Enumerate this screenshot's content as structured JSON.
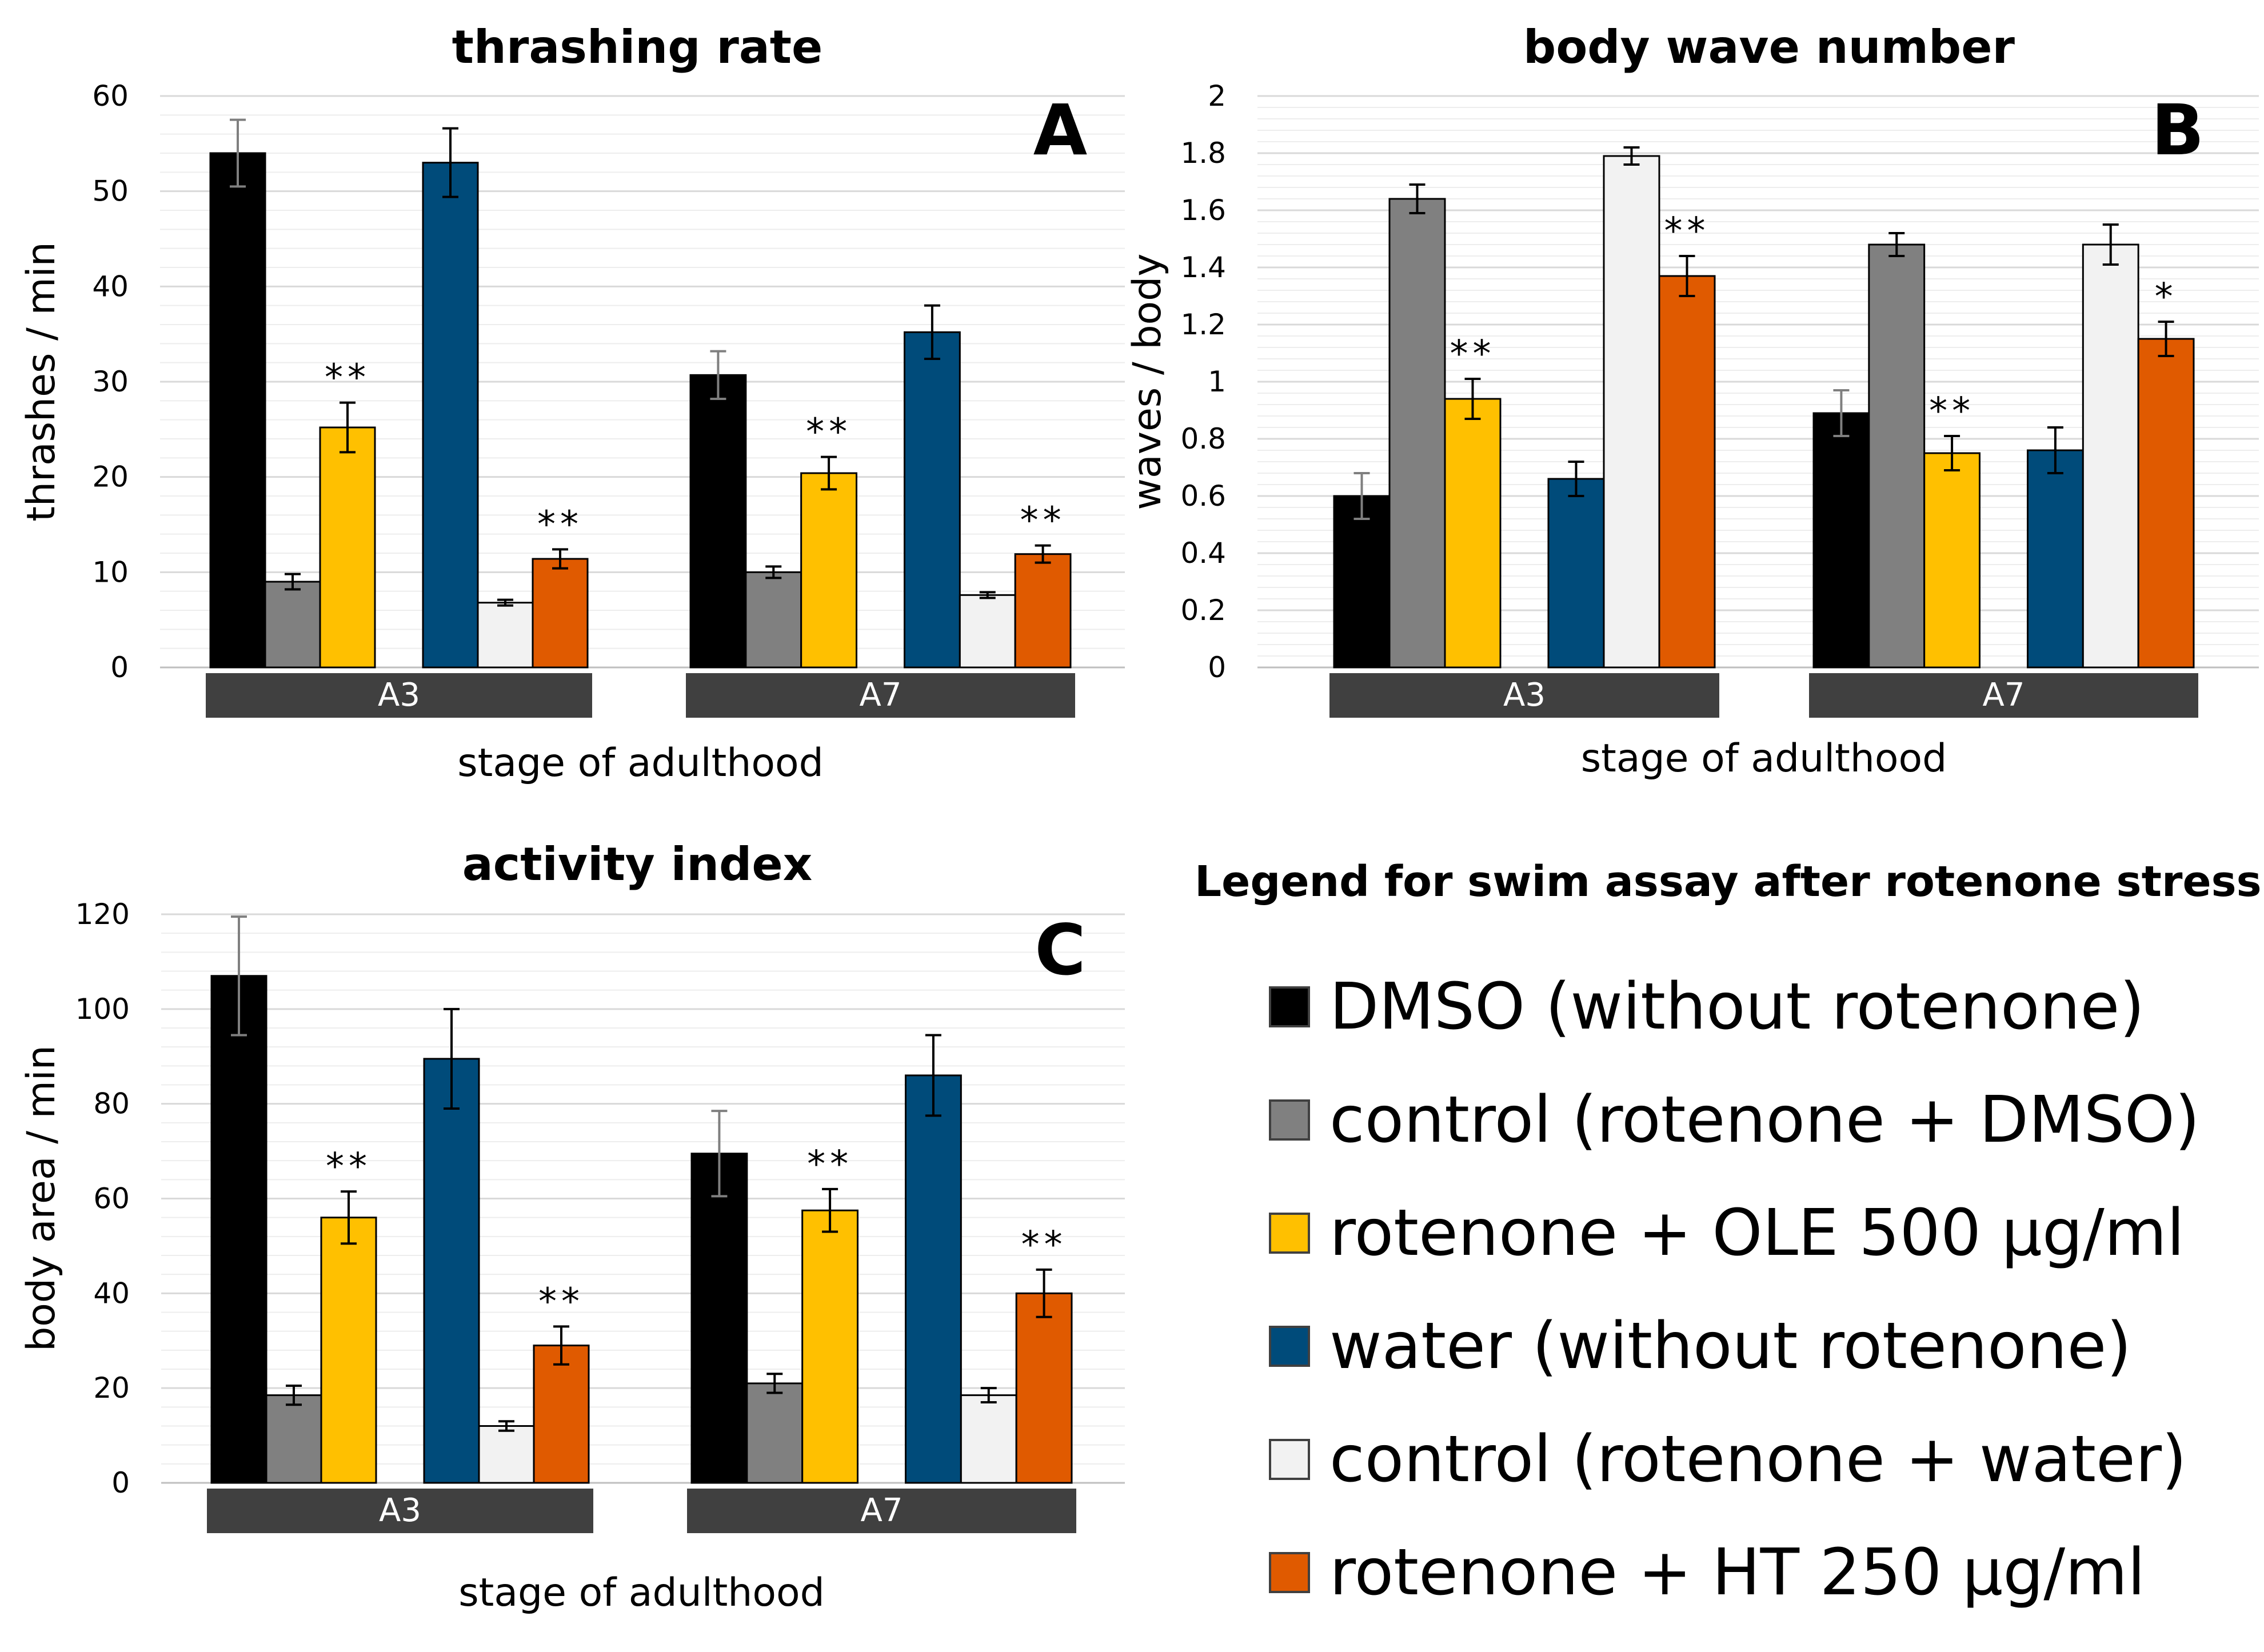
{
  "chart_data": [
    {
      "type": "bar",
      "panel": "A",
      "title": "thrashing rate",
      "xlabel": "stage of adulthood",
      "ylabel": "thrashes / min",
      "ylim": [
        0,
        60
      ],
      "yticks": [
        "0",
        "10",
        "20",
        "30",
        "40",
        "50",
        "60"
      ],
      "categories": [
        "A3",
        "A7"
      ],
      "series": [
        {
          "name": "DMSO (without rotenone)",
          "values": [
            54,
            30.7
          ],
          "errors": [
            3.5,
            2.5
          ],
          "marks": [
            "",
            ""
          ]
        },
        {
          "name": "control (rotenone + DMSO)",
          "values": [
            9,
            10
          ],
          "errors": [
            0.8,
            0.6
          ],
          "marks": [
            "",
            ""
          ]
        },
        {
          "name": "rotenone + OLE 500 µg/ml",
          "values": [
            25.2,
            20.4
          ],
          "errors": [
            2.6,
            1.7
          ],
          "marks": [
            "**",
            "**"
          ]
        },
        {
          "name": "water (without rotenone)",
          "values": [
            53,
            35.2
          ],
          "errors": [
            3.6,
            2.8
          ],
          "marks": [
            "",
            ""
          ]
        },
        {
          "name": "control (rotenone + water)",
          "values": [
            6.8,
            7.6
          ],
          "errors": [
            0.3,
            0.3
          ],
          "marks": [
            "",
            ""
          ]
        },
        {
          "name": "rotenone + HT 250 µg/ml",
          "values": [
            11.4,
            11.9
          ],
          "errors": [
            1,
            0.9
          ],
          "marks": [
            "**",
            "**"
          ]
        }
      ]
    },
    {
      "type": "bar",
      "panel": "B",
      "title": "body wave number",
      "xlabel": "stage of adulthood",
      "ylabel": "waves / body",
      "ylim": [
        0,
        2
      ],
      "yticks": [
        "0",
        "0.2",
        "0.4",
        "0.6",
        "0.8",
        "1",
        "1.2",
        "1.4",
        "1.6",
        "1.8",
        "2"
      ],
      "categories": [
        "A3",
        "A7"
      ],
      "series": [
        {
          "name": "DMSO (without rotenone)",
          "values": [
            0.6,
            0.89
          ],
          "errors": [
            0.08,
            0.08
          ],
          "marks": [
            "",
            ""
          ]
        },
        {
          "name": "control (rotenone + DMSO)",
          "values": [
            1.64,
            1.48
          ],
          "errors": [
            0.05,
            0.04
          ],
          "marks": [
            "",
            ""
          ]
        },
        {
          "name": "rotenone + OLE 500 µg/ml",
          "values": [
            0.94,
            0.75
          ],
          "errors": [
            0.07,
            0.06
          ],
          "marks": [
            "**",
            "**"
          ]
        },
        {
          "name": "water (without rotenone)",
          "values": [
            0.66,
            0.76
          ],
          "errors": [
            0.06,
            0.08
          ],
          "marks": [
            "",
            ""
          ]
        },
        {
          "name": "control (rotenone + water)",
          "values": [
            1.79,
            1.48
          ],
          "errors": [
            0.03,
            0.07
          ],
          "marks": [
            "",
            ""
          ]
        },
        {
          "name": "rotenone + HT 250 µg/ml",
          "values": [
            1.37,
            1.15
          ],
          "errors": [
            0.07,
            0.06
          ],
          "marks": [
            "**",
            "*"
          ]
        }
      ]
    },
    {
      "type": "bar",
      "panel": "C",
      "title": "activity index",
      "xlabel": "stage of adulthood",
      "ylabel": "body area / min",
      "ylim": [
        0,
        120
      ],
      "yticks": [
        "0",
        "20",
        "40",
        "60",
        "80",
        "100",
        "120"
      ],
      "categories": [
        "A3",
        "A7"
      ],
      "series": [
        {
          "name": "DMSO (without rotenone)",
          "values": [
            107,
            69.5
          ],
          "errors": [
            12.5,
            9
          ],
          "marks": [
            "",
            ""
          ]
        },
        {
          "name": "control (rotenone + DMSO)",
          "values": [
            18.5,
            21
          ],
          "errors": [
            2,
            2
          ],
          "marks": [
            "",
            ""
          ]
        },
        {
          "name": "rotenone + OLE 500 µg/ml",
          "values": [
            56,
            57.5
          ],
          "errors": [
            5.5,
            4.5
          ],
          "marks": [
            "**",
            "**"
          ]
        },
        {
          "name": "water (without rotenone)",
          "values": [
            89.5,
            86
          ],
          "errors": [
            10.5,
            8.5
          ],
          "marks": [
            "",
            ""
          ]
        },
        {
          "name": "control (rotenone + water)",
          "values": [
            12,
            18.5
          ],
          "errors": [
            1,
            1.5
          ],
          "marks": [
            "",
            ""
          ]
        },
        {
          "name": "rotenone + HT 250 µg/ml",
          "values": [
            29,
            40
          ],
          "errors": [
            4,
            5
          ],
          "marks": [
            "**",
            "**"
          ]
        }
      ]
    }
  ],
  "legend": {
    "title": "Legend for swim assay after rotenone stress:",
    "items": [
      {
        "label": "DMSO (without rotenone)",
        "color": "#000000"
      },
      {
        "label": "control (rotenone + DMSO)",
        "color": "#808080"
      },
      {
        "label": "rotenone + OLE 500 µg/ml",
        "color": "#FFC000"
      },
      {
        "label": "water (without rotenone)",
        "color": "#004B7A"
      },
      {
        "label": "control (rotenone + water)",
        "color": "#F2F2F2"
      },
      {
        "label": "rotenone + HT 250 µg/ml",
        "color": "#E05A00"
      }
    ]
  },
  "colors": {
    "category_box": "#404040",
    "category_text": "#FFFFFF",
    "bar_outline": "#000000",
    "gridline": "#D9D9D9"
  }
}
